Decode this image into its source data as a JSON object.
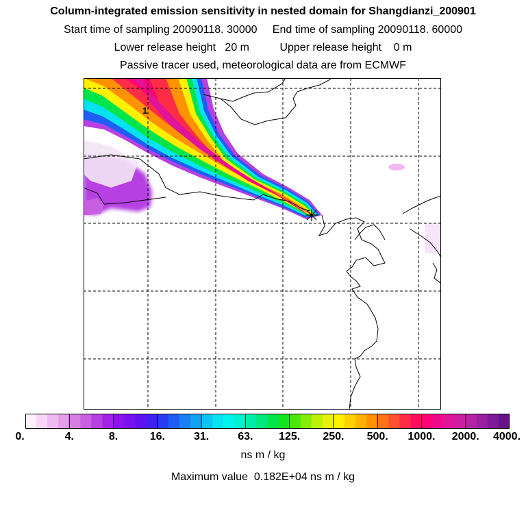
{
  "header": {
    "title": "Column-integrated emission sensitivity in nested domain for Shangdianzi_200901",
    "line_start": "Start time of sampling 20090118. 30000",
    "line_end": "End time of sampling 20090118. 60000",
    "line_lower": "Lower release height   20 m",
    "line_upper": "Upper release height    0 m",
    "line_tracer": "Passive tracer used, meteorological data are from ECMWF"
  },
  "map": {
    "contour_label": "1",
    "receptor_marker": "receptor-star",
    "colors": {
      "frame": "#000000",
      "coast": "#000000",
      "grid": "#000000"
    }
  },
  "colorbar": {
    "tick_labels": [
      "0.",
      "4.",
      "8.",
      "16.",
      "31.",
      "63.",
      "125.",
      "250.",
      "500.",
      "1000.",
      "2000.",
      "4000."
    ],
    "colors": [
      "#fdf0fd",
      "#f7d6f7",
      "#efbaf1",
      "#e59ee9",
      "#d67fe1",
      "#c85fe0",
      "#b640e2",
      "#a322e8",
      "#8c13ec",
      "#7711f0",
      "#5f13f2",
      "#4020f2",
      "#2a3cf2",
      "#1e5ef2",
      "#1880f2",
      "#12a2f2",
      "#0cc4f2",
      "#06e2f2",
      "#00f4ee",
      "#00f0d2",
      "#00eca8",
      "#00e87a",
      "#00e64a",
      "#14e41e",
      "#4ae80c",
      "#84ec08",
      "#bcf008",
      "#e8f208",
      "#fff000",
      "#ffd200",
      "#ffb200",
      "#ff9200",
      "#ff7218",
      "#ff5030",
      "#ff2c46",
      "#ff0c60",
      "#fc0478",
      "#f00a8a",
      "#e01498",
      "#cc1ea2",
      "#b422a6",
      "#9a20a2",
      "#801a98",
      "#641484"
    ],
    "units": "ns m / kg"
  },
  "footer": {
    "max_value": "Maximum value  0.182E+04 ns m / kg"
  }
}
